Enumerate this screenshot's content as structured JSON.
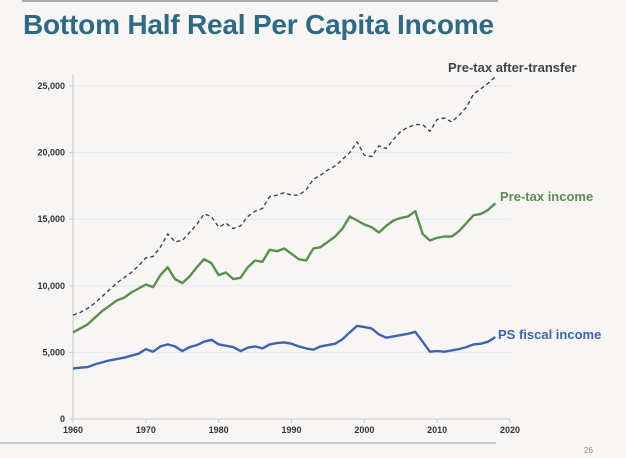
{
  "slide": {
    "page_number": "26"
  },
  "chart_data": {
    "type": "line",
    "title": "Bottom Half Real Per Capita Income",
    "xlabel": "",
    "ylabel": "",
    "xlim": [
      1960,
      2020
    ],
    "ylim": [
      0,
      25000
    ],
    "x_ticks": [
      "1960",
      "1970",
      "1980",
      "1990",
      "2000",
      "2010",
      "2020"
    ],
    "y_ticks": [
      {
        "value": 0,
        "label": "0"
      },
      {
        "value": 5000,
        "label": "5,000"
      },
      {
        "value": 10000,
        "label": "10,000"
      },
      {
        "value": 15000,
        "label": "15,000"
      },
      {
        "value": 20000,
        "label": "20,000"
      },
      {
        "value": 25000,
        "label": "25,000"
      }
    ],
    "grid": true,
    "x": [
      1960,
      1961,
      1962,
      1963,
      1964,
      1965,
      1966,
      1967,
      1968,
      1969,
      1970,
      1971,
      1972,
      1973,
      1974,
      1975,
      1976,
      1977,
      1978,
      1979,
      1980,
      1981,
      1982,
      1983,
      1984,
      1985,
      1986,
      1987,
      1988,
      1989,
      1990,
      1991,
      1992,
      1993,
      1994,
      1995,
      1996,
      1997,
      1998,
      1999,
      2000,
      2001,
      2002,
      2003,
      2004,
      2005,
      2006,
      2007,
      2008,
      2009,
      2010,
      2011,
      2012,
      2013,
      2014,
      2015,
      2016,
      2017,
      2018
    ],
    "series": [
      {
        "name": "Pre-tax after-transfer",
        "label": "Pre-tax after-transfer",
        "color": "#444444",
        "style": "dashed",
        "values": [
          7800,
          8000,
          8300,
          8700,
          9200,
          9700,
          10200,
          10600,
          11000,
          11500,
          12100,
          12200,
          12900,
          13900,
          13300,
          13400,
          14000,
          14600,
          15400,
          15200,
          14400,
          14700,
          14300,
          14500,
          15200,
          15600,
          15800,
          16700,
          16800,
          17000,
          16800,
          16800,
          17200,
          18000,
          18300,
          18700,
          19000,
          19500,
          20000,
          20800,
          19800,
          19700,
          20500,
          20300,
          21000,
          21600,
          21900,
          22100,
          22100,
          21600,
          22500,
          22600,
          22300,
          22800,
          23400,
          24400,
          24800,
          25200,
          25700
        ]
      },
      {
        "name": "Pre-tax income",
        "label": "Pre-tax income",
        "color": "#5b8f4e",
        "style": "solid",
        "values": [
          6500,
          6800,
          7100,
          7600,
          8100,
          8500,
          8900,
          9100,
          9500,
          9800,
          10100,
          9900,
          10800,
          11400,
          10500,
          10200,
          10700,
          11400,
          12000,
          11700,
          10800,
          11000,
          10500,
          10600,
          11400,
          11900,
          11800,
          12700,
          12600,
          12800,
          12400,
          12000,
          11900,
          12800,
          12900,
          13300,
          13700,
          14300,
          15200,
          14900,
          14600,
          14400,
          14000,
          14500,
          14900,
          15100,
          15200,
          15600,
          13900,
          13400,
          13600,
          13700,
          13700,
          14100,
          14700,
          15300,
          15400,
          15700,
          16200
        ]
      },
      {
        "name": "PS fiscal income",
        "label": "PS fiscal income",
        "color": "#3e63b5",
        "style": "solid",
        "values": [
          3800,
          3850,
          3900,
          4100,
          4250,
          4400,
          4500,
          4600,
          4750,
          4900,
          5250,
          5050,
          5450,
          5600,
          5450,
          5100,
          5400,
          5550,
          5800,
          5950,
          5600,
          5500,
          5400,
          5100,
          5350,
          5450,
          5300,
          5600,
          5700,
          5750,
          5650,
          5450,
          5300,
          5200,
          5450,
          5550,
          5650,
          6000,
          6500,
          7000,
          6900,
          6800,
          6350,
          6100,
          6200,
          6300,
          6400,
          6550,
          5800,
          5050,
          5100,
          5050,
          5150,
          5250,
          5400,
          5600,
          5650,
          5800,
          6150
        ]
      }
    ]
  }
}
